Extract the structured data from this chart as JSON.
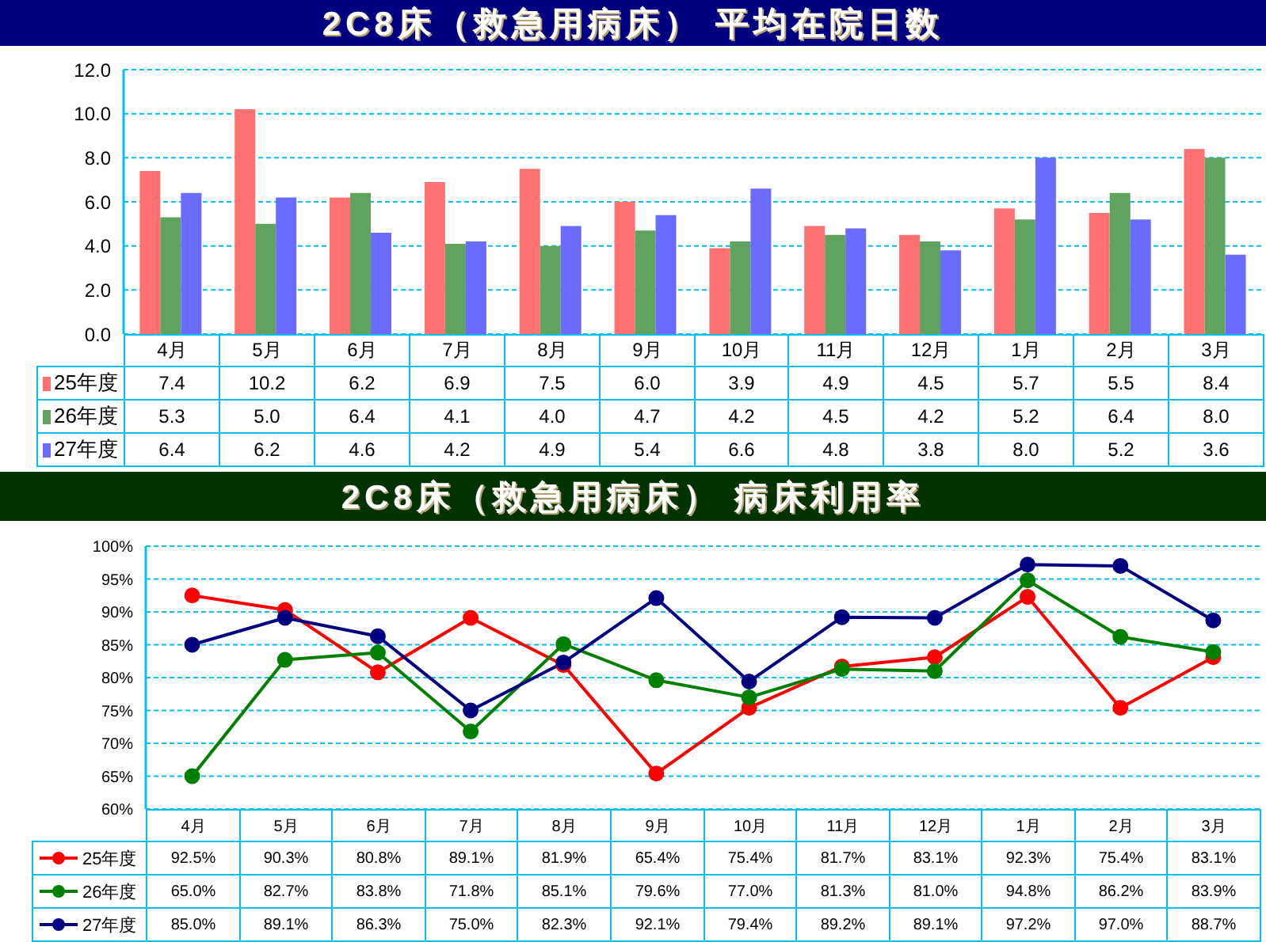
{
  "chart_data": [
    {
      "type": "bar",
      "title": "2C8床（救急用病床） 平均在院日数",
      "categories": [
        "4月",
        "5月",
        "6月",
        "7月",
        "8月",
        "9月",
        "10月",
        "11月",
        "12月",
        "1月",
        "2月",
        "3月"
      ],
      "series": [
        {
          "name": "25年度",
          "color": "#ff7070",
          "values": [
            7.4,
            10.2,
            6.2,
            6.9,
            7.5,
            6.0,
            3.9,
            4.9,
            4.5,
            5.7,
            5.5,
            8.4
          ],
          "value_labels": [
            "7.4",
            "10.2",
            "6.2",
            "6.9",
            "7.5",
            "6.0",
            "3.9",
            "4.9",
            "4.5",
            "5.7",
            "5.5",
            "8.4"
          ]
        },
        {
          "name": "26年度",
          "color": "#5fa35f",
          "values": [
            5.3,
            5.0,
            6.4,
            4.1,
            4.0,
            4.7,
            4.2,
            4.5,
            4.2,
            5.2,
            6.4,
            8.0
          ],
          "value_labels": [
            "5.3",
            "5.0",
            "6.4",
            "4.1",
            "4.0",
            "4.7",
            "4.2",
            "4.5",
            "4.2",
            "5.2",
            "6.4",
            "8.0"
          ]
        },
        {
          "name": "27年度",
          "color": "#6b6bff",
          "values": [
            6.4,
            6.2,
            4.6,
            4.2,
            4.9,
            5.4,
            6.6,
            4.8,
            3.8,
            8.0,
            5.2,
            3.6
          ],
          "value_labels": [
            "6.4",
            "6.2",
            "4.6",
            "4.2",
            "4.9",
            "5.4",
            "6.6",
            "4.8",
            "3.8",
            "8.0",
            "5.2",
            "3.6"
          ]
        }
      ],
      "ylim": [
        0,
        12
      ],
      "yticks": [
        {
          "value": 0,
          "label": "0.0"
        },
        {
          "value": 2,
          "label": "2.0"
        },
        {
          "value": 4,
          "label": "4.0"
        },
        {
          "value": 6,
          "label": "6.0"
        },
        {
          "value": 8,
          "label": "8.0"
        },
        {
          "value": 10,
          "label": "10.0"
        },
        {
          "value": 12,
          "label": "12.0"
        }
      ],
      "grid": "y",
      "legend": "bottom left"
    },
    {
      "type": "line",
      "title": "2C8床（救急用病床） 病床利用率",
      "categories": [
        "4月",
        "5月",
        "6月",
        "7月",
        "8月",
        "9月",
        "10月",
        "11月",
        "12月",
        "1月",
        "2月",
        "3月"
      ],
      "series": [
        {
          "name": "25年度",
          "color": "#ff0000",
          "values": [
            92.5,
            90.3,
            80.8,
            89.1,
            81.9,
            65.4,
            75.4,
            81.7,
            83.1,
            92.3,
            75.4,
            83.1
          ],
          "value_labels": [
            "92.5%",
            "90.3%",
            "80.8%",
            "89.1%",
            "81.9%",
            "65.4%",
            "75.4%",
            "81.7%",
            "83.1%",
            "92.3%",
            "75.4%",
            "83.1%"
          ]
        },
        {
          "name": "26年度",
          "color": "#008000",
          "values": [
            65.0,
            82.7,
            83.8,
            71.8,
            85.1,
            79.6,
            77.0,
            81.3,
            81.0,
            94.8,
            86.2,
            83.9
          ],
          "value_labels": [
            "65.0%",
            "82.7%",
            "83.8%",
            "71.8%",
            "85.1%",
            "79.6%",
            "77.0%",
            "81.3%",
            "81.0%",
            "94.8%",
            "86.2%",
            "83.9%"
          ]
        },
        {
          "name": "27年度",
          "color": "#000080",
          "values": [
            85.0,
            89.1,
            86.3,
            75.0,
            82.3,
            92.1,
            79.4,
            89.2,
            89.1,
            97.2,
            97.0,
            88.7
          ],
          "value_labels": [
            "85.0%",
            "89.1%",
            "86.3%",
            "75.0%",
            "82.3%",
            "92.1%",
            "79.4%",
            "89.2%",
            "89.1%",
            "97.2%",
            "97.0%",
            "88.7%"
          ]
        }
      ],
      "ylim": [
        60,
        100
      ],
      "yticks": [
        {
          "value": 60,
          "label": "60%"
        },
        {
          "value": 65,
          "label": "65%"
        },
        {
          "value": 70,
          "label": "70%"
        },
        {
          "value": 75,
          "label": "75%"
        },
        {
          "value": 80,
          "label": "80%"
        },
        {
          "value": 85,
          "label": "85%"
        },
        {
          "value": 90,
          "label": "90%"
        },
        {
          "value": 95,
          "label": "95%"
        },
        {
          "value": 100,
          "label": "100%"
        }
      ],
      "grid": "y",
      "legend": "bottom left",
      "marker": "circle"
    }
  ]
}
